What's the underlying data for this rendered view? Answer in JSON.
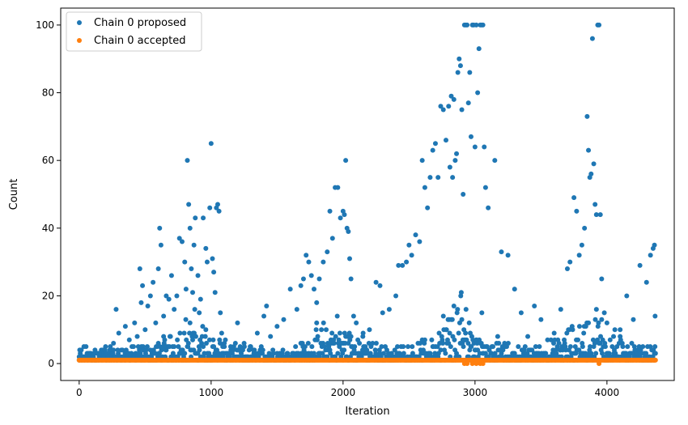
{
  "chart_data": {
    "type": "scatter",
    "title": "",
    "xlabel": "Iteration",
    "ylabel": "Count",
    "xlim": [
      -140,
      4510
    ],
    "ylim": [
      -5,
      105
    ],
    "x_ticks": [
      0,
      1000,
      2000,
      3000,
      4000
    ],
    "y_ticks": [
      0,
      20,
      40,
      60,
      80,
      100
    ],
    "x_tick_labels": [
      "0",
      "1000",
      "2000",
      "3000",
      "4000"
    ],
    "y_tick_labels": [
      "0",
      "20",
      "40",
      "60",
      "80",
      "100"
    ],
    "grid": false,
    "legend_position": "top-left",
    "n_iterations": 4370,
    "series": [
      {
        "name": "Chain 0 proposed",
        "color": "#1f77b4",
        "points": [
          [
            0,
            1
          ],
          [
            20,
            1
          ],
          [
            40,
            2
          ],
          [
            60,
            3
          ],
          [
            80,
            2
          ],
          [
            100,
            1
          ],
          [
            120,
            4
          ],
          [
            150,
            3
          ],
          [
            180,
            2
          ],
          [
            200,
            5
          ],
          [
            230,
            3
          ],
          [
            260,
            6
          ],
          [
            280,
            16
          ],
          [
            300,
            9
          ],
          [
            320,
            4
          ],
          [
            350,
            11
          ],
          [
            380,
            7
          ],
          [
            400,
            5
          ],
          [
            420,
            12
          ],
          [
            440,
            8
          ],
          [
            460,
            28
          ],
          [
            470,
            18
          ],
          [
            480,
            23
          ],
          [
            500,
            10
          ],
          [
            520,
            17
          ],
          [
            540,
            20
          ],
          [
            560,
            24
          ],
          [
            580,
            12
          ],
          [
            600,
            28
          ],
          [
            610,
            40
          ],
          [
            620,
            35
          ],
          [
            640,
            14
          ],
          [
            660,
            20
          ],
          [
            680,
            19
          ],
          [
            700,
            26
          ],
          [
            720,
            16
          ],
          [
            740,
            20
          ],
          [
            760,
            37
          ],
          [
            780,
            36
          ],
          [
            800,
            30
          ],
          [
            810,
            22
          ],
          [
            820,
            60
          ],
          [
            830,
            47
          ],
          [
            840,
            40
          ],
          [
            850,
            28
          ],
          [
            860,
            21
          ],
          [
            870,
            35
          ],
          [
            880,
            43
          ],
          [
            900,
            26
          ],
          [
            910,
            15
          ],
          [
            920,
            19
          ],
          [
            940,
            43
          ],
          [
            960,
            34
          ],
          [
            970,
            30
          ],
          [
            990,
            46
          ],
          [
            1000,
            65
          ],
          [
            1010,
            31
          ],
          [
            1020,
            27
          ],
          [
            1030,
            21
          ],
          [
            1040,
            46
          ],
          [
            1050,
            47
          ],
          [
            1060,
            45
          ],
          [
            1070,
            15
          ],
          [
            1080,
            9
          ],
          [
            1100,
            6
          ],
          [
            1150,
            4
          ],
          [
            1200,
            12
          ],
          [
            1250,
            6
          ],
          [
            1300,
            5
          ],
          [
            1350,
            9
          ],
          [
            1400,
            14
          ],
          [
            1420,
            17
          ],
          [
            1450,
            8
          ],
          [
            1500,
            11
          ],
          [
            1550,
            13
          ],
          [
            1600,
            22
          ],
          [
            1650,
            16
          ],
          [
            1680,
            23
          ],
          [
            1700,
            25
          ],
          [
            1720,
            32
          ],
          [
            1740,
            30
          ],
          [
            1760,
            26
          ],
          [
            1780,
            22
          ],
          [
            1800,
            18
          ],
          [
            1820,
            25
          ],
          [
            1850,
            30
          ],
          [
            1880,
            33
          ],
          [
            1900,
            45
          ],
          [
            1920,
            37
          ],
          [
            1940,
            52
          ],
          [
            1960,
            52
          ],
          [
            1980,
            43
          ],
          [
            2000,
            45
          ],
          [
            2010,
            44
          ],
          [
            2020,
            60
          ],
          [
            2030,
            40
          ],
          [
            2040,
            39
          ],
          [
            2050,
            31
          ],
          [
            2060,
            25
          ],
          [
            2080,
            14
          ],
          [
            2100,
            12
          ],
          [
            2150,
            8
          ],
          [
            2200,
            10
          ],
          [
            2250,
            24
          ],
          [
            2280,
            23
          ],
          [
            2300,
            15
          ],
          [
            2350,
            16
          ],
          [
            2400,
            20
          ],
          [
            2420,
            29
          ],
          [
            2450,
            29
          ],
          [
            2480,
            30
          ],
          [
            2500,
            35
          ],
          [
            2520,
            32
          ],
          [
            2550,
            38
          ],
          [
            2580,
            36
          ],
          [
            2600,
            60
          ],
          [
            2620,
            52
          ],
          [
            2640,
            46
          ],
          [
            2660,
            55
          ],
          [
            2680,
            63
          ],
          [
            2700,
            65
          ],
          [
            2720,
            55
          ],
          [
            2740,
            76
          ],
          [
            2760,
            75
          ],
          [
            2780,
            66
          ],
          [
            2800,
            76
          ],
          [
            2810,
            58
          ],
          [
            2820,
            79
          ],
          [
            2830,
            55
          ],
          [
            2840,
            78
          ],
          [
            2850,
            60
          ],
          [
            2860,
            62
          ],
          [
            2870,
            86
          ],
          [
            2880,
            90
          ],
          [
            2890,
            88
          ],
          [
            2900,
            75
          ],
          [
            2910,
            50
          ],
          [
            2920,
            100
          ],
          [
            2930,
            100
          ],
          [
            2940,
            100
          ],
          [
            2950,
            77
          ],
          [
            2960,
            86
          ],
          [
            2970,
            67
          ],
          [
            2980,
            100
          ],
          [
            2990,
            100
          ],
          [
            3000,
            64
          ],
          [
            3010,
            100
          ],
          [
            3020,
            80
          ],
          [
            3030,
            93
          ],
          [
            3040,
            100
          ],
          [
            3050,
            100
          ],
          [
            3060,
            100
          ],
          [
            3070,
            64
          ],
          [
            3080,
            52
          ],
          [
            3100,
            46
          ],
          [
            3150,
            60
          ],
          [
            3200,
            33
          ],
          [
            3250,
            32
          ],
          [
            3300,
            22
          ],
          [
            3350,
            15
          ],
          [
            3400,
            8
          ],
          [
            3450,
            17
          ],
          [
            3500,
            13
          ],
          [
            3550,
            7
          ],
          [
            3600,
            9
          ],
          [
            3650,
            16
          ],
          [
            3700,
            28
          ],
          [
            3720,
            30
          ],
          [
            3750,
            49
          ],
          [
            3770,
            45
          ],
          [
            3790,
            32
          ],
          [
            3810,
            35
          ],
          [
            3830,
            40
          ],
          [
            3850,
            73
          ],
          [
            3860,
            63
          ],
          [
            3870,
            55
          ],
          [
            3880,
            56
          ],
          [
            3890,
            96
          ],
          [
            3900,
            59
          ],
          [
            3910,
            47
          ],
          [
            3920,
            44
          ],
          [
            3930,
            100
          ],
          [
            3940,
            100
          ],
          [
            3950,
            44
          ],
          [
            3960,
            25
          ],
          [
            3980,
            15
          ],
          [
            4000,
            12
          ],
          [
            4050,
            8
          ],
          [
            4100,
            10
          ],
          [
            4150,
            20
          ],
          [
            4200,
            13
          ],
          [
            4250,
            29
          ],
          [
            4300,
            24
          ],
          [
            4330,
            32
          ],
          [
            4350,
            34
          ],
          [
            4360,
            35
          ],
          [
            4365,
            14
          ]
        ]
      },
      {
        "name": "Chain 0 accepted",
        "color": "#ff7f0e",
        "points": [
          [
            0,
            1
          ],
          [
            500,
            1
          ],
          [
            1000,
            1
          ],
          [
            1500,
            1
          ],
          [
            2000,
            1
          ],
          [
            2500,
            1
          ],
          [
            2920,
            0
          ],
          [
            2940,
            0
          ],
          [
            2980,
            0
          ],
          [
            3010,
            0
          ],
          [
            3040,
            0
          ],
          [
            3060,
            0
          ],
          [
            3500,
            1
          ],
          [
            3940,
            0
          ],
          [
            4000,
            1
          ],
          [
            4360,
            1
          ]
        ]
      }
    ]
  }
}
